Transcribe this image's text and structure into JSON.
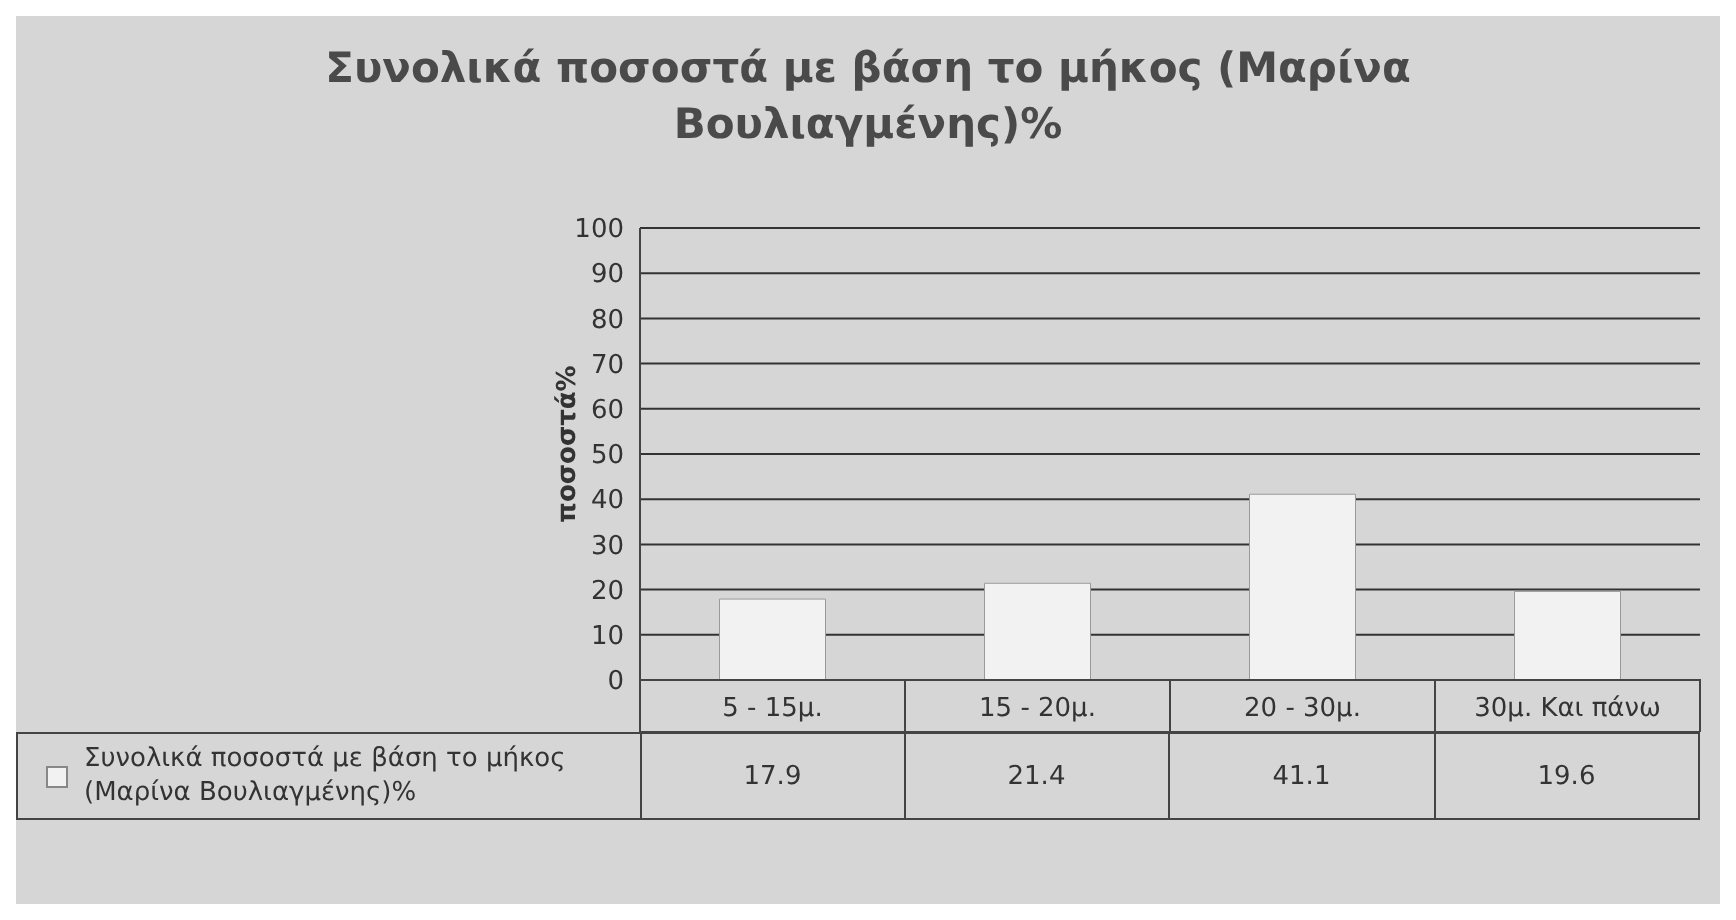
{
  "chart_data": {
    "type": "bar",
    "title": "Συνολικά ποσοστά με βάση το μήκος (Μαρίνα Βουλιαγμένης)%",
    "ylabel": "ποσοστά%",
    "categories": [
      "5 - 15μ.",
      "15 - 20μ.",
      "20 - 30μ.",
      "30μ. Και πάνω"
    ],
    "series": [
      {
        "name": "Συνολικά ποσοστά με βάση το μήκος (Μαρίνα Βουλιαγμένης)%",
        "color": "#f2f2f2",
        "values": [
          17.9,
          21.4,
          41.1,
          19.6
        ]
      }
    ],
    "ylim": [
      0,
      100
    ],
    "yticks": [
      0,
      10,
      20,
      30,
      40,
      50,
      60,
      70,
      80,
      90,
      100
    ],
    "grid": "y",
    "legend": "bottom left",
    "data_labels": true
  }
}
